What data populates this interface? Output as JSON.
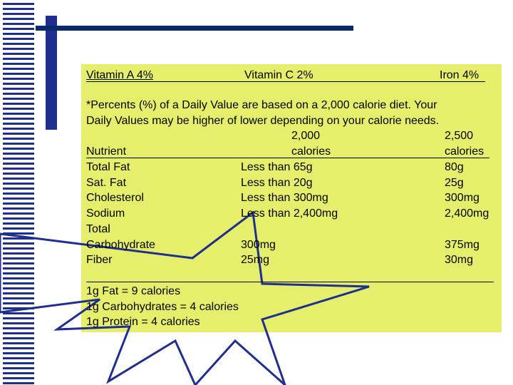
{
  "vitamins": {
    "a": "Vitamin A 4%",
    "c": "Vitamin C 2%",
    "iron": "Iron 4%"
  },
  "footnote": {
    "line1": "*Percents (%) of a Daily Value are based on a 2,000 calorie diet. Your",
    "line2": "Daily Values may be higher of lower depending on your calorie needs."
  },
  "table": {
    "headers": {
      "nutrient": "Nutrient",
      "col1_top": "2,000",
      "col1_bottom": "calories",
      "col2_top": "2,500",
      "col2_bottom": "calories"
    },
    "rows": [
      {
        "nutrient": "Total Fat",
        "v2000": "Less than 65g",
        "v2500": "80g"
      },
      {
        "nutrient": "Sat. Fat",
        "v2000": "Less than 20g",
        "v2500": "25g"
      },
      {
        "nutrient": "Cholesterol",
        "v2000": "Less than 300mg",
        "v2500": "300mg"
      },
      {
        "nutrient": "Sodium",
        "v2000": "Less than 2,400mg",
        "v2500": "2,400mg"
      }
    ],
    "total_carb": {
      "label_line1": "Total",
      "label_line2": "Carbohydrate",
      "v2000": "300mg",
      "v2500": "375mg"
    },
    "fiber": {
      "nutrient": "Fiber",
      "v2000": "25mg",
      "v2500": "30mg"
    }
  },
  "calories_per_gram": [
    "1g Fat = 9 calories",
    "1g Carbohydrates = 4 calories",
    "1g Protein = 4 calories"
  ],
  "colors": {
    "panel": "#e6ef6c",
    "navy": "#1f2f8f",
    "stripe": "#1f2f8f"
  }
}
